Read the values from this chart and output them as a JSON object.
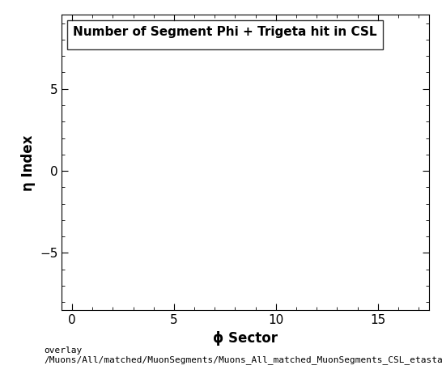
{
  "title": "Number of Segment Phi + Trigeta hit in CSL",
  "xlabel": "ϕ Sector",
  "ylabel": "η Index",
  "xlim": [
    -0.5,
    17.5
  ],
  "ylim": [
    -8.5,
    9.5
  ],
  "xticks": [
    0,
    5,
    10,
    15
  ],
  "yticks": [
    -5,
    0,
    5
  ],
  "caption_line1": "overlay",
  "caption_line2": "/Muons/All/matched/MuonSegments/Muons_All_matched_MuonSegments_CSL_etasta",
  "background_color": "#ffffff",
  "plot_bg_color": "#ffffff",
  "title_fontsize": 11,
  "axis_label_fontsize": 12,
  "tick_fontsize": 11,
  "caption_fontsize": 8
}
